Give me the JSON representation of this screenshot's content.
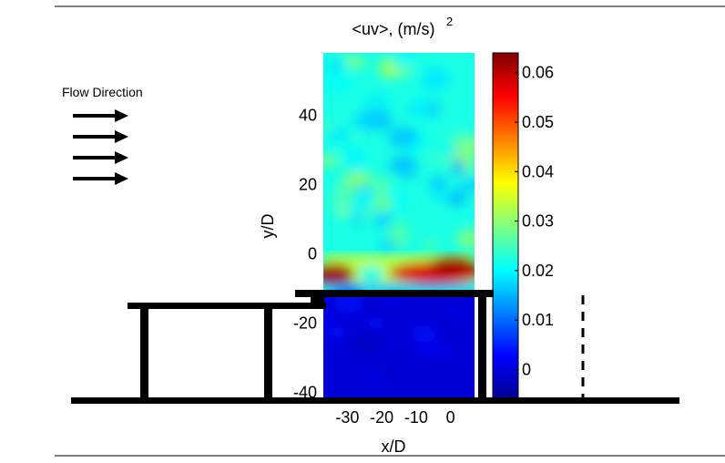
{
  "chart_data": {
    "type": "heatmap",
    "title": "<uv>, (m/s)",
    "title_superscript": "2",
    "xlabel": "x/D",
    "ylabel": "y/D",
    "x_ticks": [
      "-30",
      "-20",
      "-10",
      "0"
    ],
    "y_ticks": [
      "40",
      "20",
      "0",
      "-20",
      "-40"
    ],
    "xlim": [
      -37,
      7
    ],
    "ylim": [
      -42,
      58
    ],
    "colorbar": {
      "ticks": [
        "0.06",
        "0.05",
        "0.04",
        "0.03",
        "0.02",
        "0.01",
        "0"
      ],
      "range": [
        -0.006,
        0.064
      ],
      "colormap": "jet"
    },
    "field": {
      "background_level": 0.022,
      "shear_layer": {
        "y_center": -6,
        "peak_value": 0.062,
        "gap_x_range": [
          -26,
          -20
        ]
      },
      "below_wall_level": 0.0
    },
    "annotation": {
      "label": "Flow Direction",
      "arrow_count": 4
    },
    "colors": {
      "structure": "#000000",
      "background": "#ffffff"
    }
  }
}
